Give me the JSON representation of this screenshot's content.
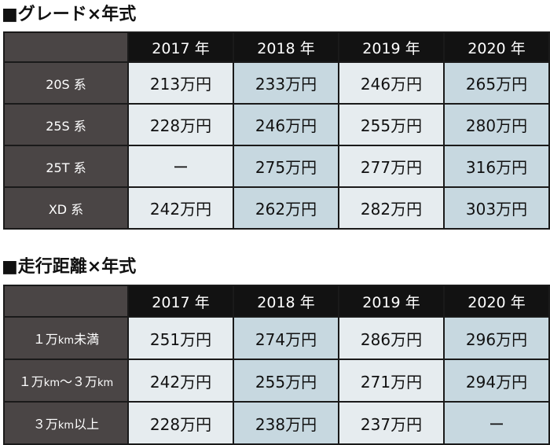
{
  "tables": [
    {
      "title": "■グレード×年式",
      "columns": [
        "2017 年",
        "2018 年",
        "2019 年",
        "2020 年"
      ],
      "rows": [
        {
          "label": "20S 系",
          "values": [
            "213万円",
            "233万円",
            "246万円",
            "265万円"
          ]
        },
        {
          "label": "25S 系",
          "values": [
            "228万円",
            "246万円",
            "255万円",
            "280万円"
          ]
        },
        {
          "label": "25T 系",
          "values": [
            "ー",
            "275万円",
            "277万円",
            "316万円"
          ]
        },
        {
          "label": "XD 系",
          "values": [
            "242万円",
            "262万円",
            "282万円",
            "303万円"
          ]
        }
      ]
    },
    {
      "title": "■走行距離×年式",
      "columns": [
        "2017 年",
        "2018 年",
        "2019 年",
        "2020 年"
      ],
      "rows": [
        {
          "label": "１万km未満",
          "values": [
            "251万円",
            "274万円",
            "286万円",
            "296万円"
          ]
        },
        {
          "label": "１万km〜３万km",
          "values": [
            "242万円",
            "255万円",
            "271万円",
            "294万円"
          ]
        },
        {
          "label": "３万km以上",
          "values": [
            "228万円",
            "238万円",
            "237万円",
            "ー"
          ]
        }
      ]
    }
  ],
  "colors": {
    "header_bg": "#121212",
    "row_label_bg": "#4a4545",
    "cell_light": "#e6ecef",
    "cell_blue": "#c7d8e0"
  }
}
